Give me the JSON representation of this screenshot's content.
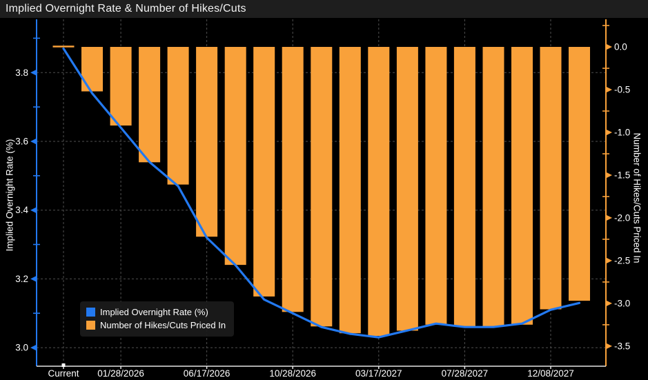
{
  "window": {
    "title": "Implied Overnight Rate & Number of Hikes/Cuts"
  },
  "chart_data": {
    "type": "bar+line dual-axis",
    "title": "Implied Overnight Rate & Number of Hikes/Cuts",
    "x_ticks": [
      {
        "index": 0,
        "label": "Current"
      },
      {
        "index": 2,
        "label": "01/28/2026"
      },
      {
        "index": 5,
        "label": "06/17/2026"
      },
      {
        "index": 8,
        "label": "10/28/2026"
      },
      {
        "index": 11,
        "label": "03/17/2027"
      },
      {
        "index": 14,
        "label": "07/28/2027"
      },
      {
        "index": 17,
        "label": "12/08/2027"
      }
    ],
    "series": [
      {
        "name": "Implied Overnight Rate (%)",
        "type": "line",
        "axis": "left",
        "color": "#2379F0",
        "values": [
          3.87,
          3.74,
          3.64,
          3.54,
          3.47,
          3.32,
          3.24,
          3.14,
          3.1,
          3.06,
          3.04,
          3.03,
          3.05,
          3.07,
          3.06,
          3.06,
          3.07,
          3.11,
          3.13
        ]
      },
      {
        "name": "Number of Hikes/Cuts Priced In",
        "type": "bar",
        "axis": "right",
        "color": "#F9A13A",
        "values": [
          0.0,
          -0.52,
          -0.92,
          -1.35,
          -1.61,
          -2.22,
          -2.55,
          -2.92,
          -3.1,
          -3.27,
          -3.35,
          -3.38,
          -3.32,
          -3.25,
          -3.27,
          -3.27,
          -3.25,
          -3.07,
          -2.97
        ]
      }
    ],
    "left_axis": {
      "title": "Implied Overnight Rate (%)",
      "tick_labels": [
        "3.8",
        "3.6",
        "3.4",
        "3.2",
        "3.0"
      ],
      "tick_values": [
        3.8,
        3.6,
        3.4,
        3.2,
        3.0
      ],
      "minor_ticks": [
        3.9,
        3.7,
        3.5,
        3.3,
        3.1
      ],
      "range": [
        2.946,
        3.955
      ],
      "color": "#2379F0",
      "label_color": "#FFFFFF"
    },
    "right_axis": {
      "title": "Number of Hikes/Cuts Priced In",
      "tick_labels": [
        "0.0",
        "-0.5",
        "-1.0",
        "-1.5",
        "-2.0",
        "-2.5",
        "-3.0",
        "-3.5"
      ],
      "tick_values": [
        0,
        -0.5,
        -1,
        -1.5,
        -2,
        -2.5,
        -3,
        -3.5
      ],
      "minor_ticks": [
        0.25,
        -0.25,
        -0.75,
        -1.25,
        -1.75,
        -2.25,
        -2.75,
        -3.25
      ],
      "range": [
        -3.735,
        0.323
      ],
      "color": "#F9A13A",
      "label_color": "#FFFFFF"
    },
    "grid_color": "#4f4f4f",
    "x_axis_color": "#E6E6E6",
    "background": "#000000",
    "legend_position": "bottom-left"
  }
}
